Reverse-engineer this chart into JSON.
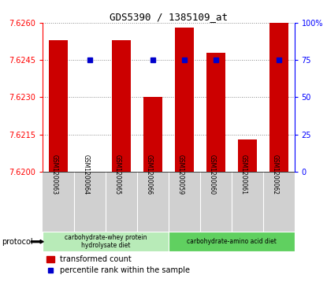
{
  "title": "GDS5390 / 1385109_at",
  "samples": [
    "GSM1200063",
    "GSM1200064",
    "GSM1200065",
    "GSM1200066",
    "GSM1200059",
    "GSM1200060",
    "GSM1200061",
    "GSM1200062"
  ],
  "red_values": [
    7.6253,
    7.62,
    7.6253,
    7.623,
    7.6258,
    7.6248,
    7.6213,
    7.626
  ],
  "blue_values": [
    null,
    75,
    null,
    75,
    75,
    75,
    null,
    75
  ],
  "ylim_left": [
    7.62,
    7.626
  ],
  "ylim_right": [
    0,
    100
  ],
  "yticks_left": [
    7.62,
    7.6215,
    7.623,
    7.6245,
    7.626
  ],
  "yticks_right": [
    0,
    25,
    50,
    75,
    100
  ],
  "protocol_groups": [
    {
      "label": "carbohydrate-whey protein\nhydrolysate diet",
      "start": 0,
      "end": 4,
      "color": "#b8ebb8"
    },
    {
      "label": "carbohydrate-amino acid diet",
      "start": 4,
      "end": 8,
      "color": "#60d060"
    }
  ],
  "bar_color": "#cc0000",
  "dot_color": "#0000cc",
  "grid_color": "#888888",
  "tick_area_color": "#d0d0d0",
  "legend_red_label": "transformed count",
  "legend_blue_label": "percentile rank within the sample",
  "protocol_label": "protocol"
}
